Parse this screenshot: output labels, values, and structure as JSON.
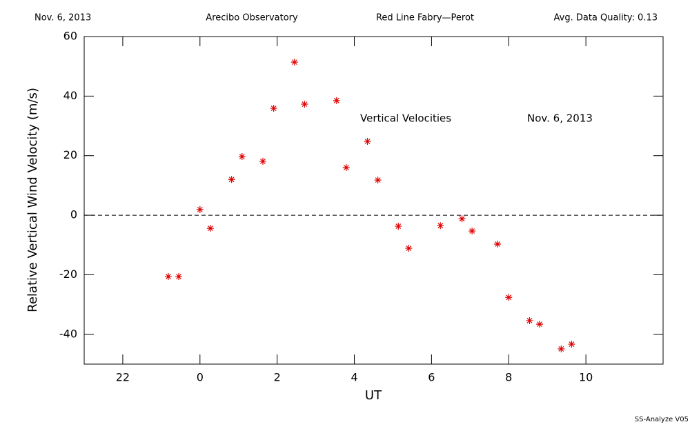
{
  "chart_data": {
    "type": "scatter",
    "header": [
      "Nov. 6, 2013",
      "Arecibo Observatory",
      "Red Line Fabry—Perot",
      "Avg. Data Quality: 0.13"
    ],
    "x_label": "UT",
    "y_label": "Relative Vertical Wind Velocity (m/s)",
    "annotations": [
      "Vertical Velocities",
      "Nov. 6, 2013"
    ],
    "footer": "SS-Analyze V05",
    "xlim": [
      -3,
      12
    ],
    "ylim": [
      -50,
      60
    ],
    "xticks": [
      {
        "value": -2,
        "label": "22"
      },
      0,
      2,
      4,
      6,
      8,
      10
    ],
    "yticks": [
      -40,
      -20,
      0,
      20,
      40,
      60
    ],
    "reference_line": 0,
    "series": [
      {
        "name": "Vertical Velocities",
        "color": "#e00000",
        "x": [
          -0.82,
          -0.55,
          0.0,
          0.27,
          0.82,
          1.09,
          1.63,
          1.91,
          2.45,
          2.71,
          3.54,
          3.79,
          4.34,
          4.61,
          5.14,
          5.41,
          6.23,
          6.79,
          7.05,
          7.71,
          8.0,
          8.54,
          8.8,
          9.36,
          9.63
        ],
        "values": [
          -20.6,
          -20.6,
          1.9,
          -4.4,
          12.0,
          19.7,
          18.1,
          35.9,
          51.4,
          37.3,
          38.5,
          16.0,
          24.8,
          11.8,
          -3.7,
          -11.1,
          -3.5,
          -1.2,
          -5.3,
          -9.7,
          -27.6,
          -35.4,
          -36.6,
          -44.9,
          -43.3
        ]
      }
    ]
  }
}
